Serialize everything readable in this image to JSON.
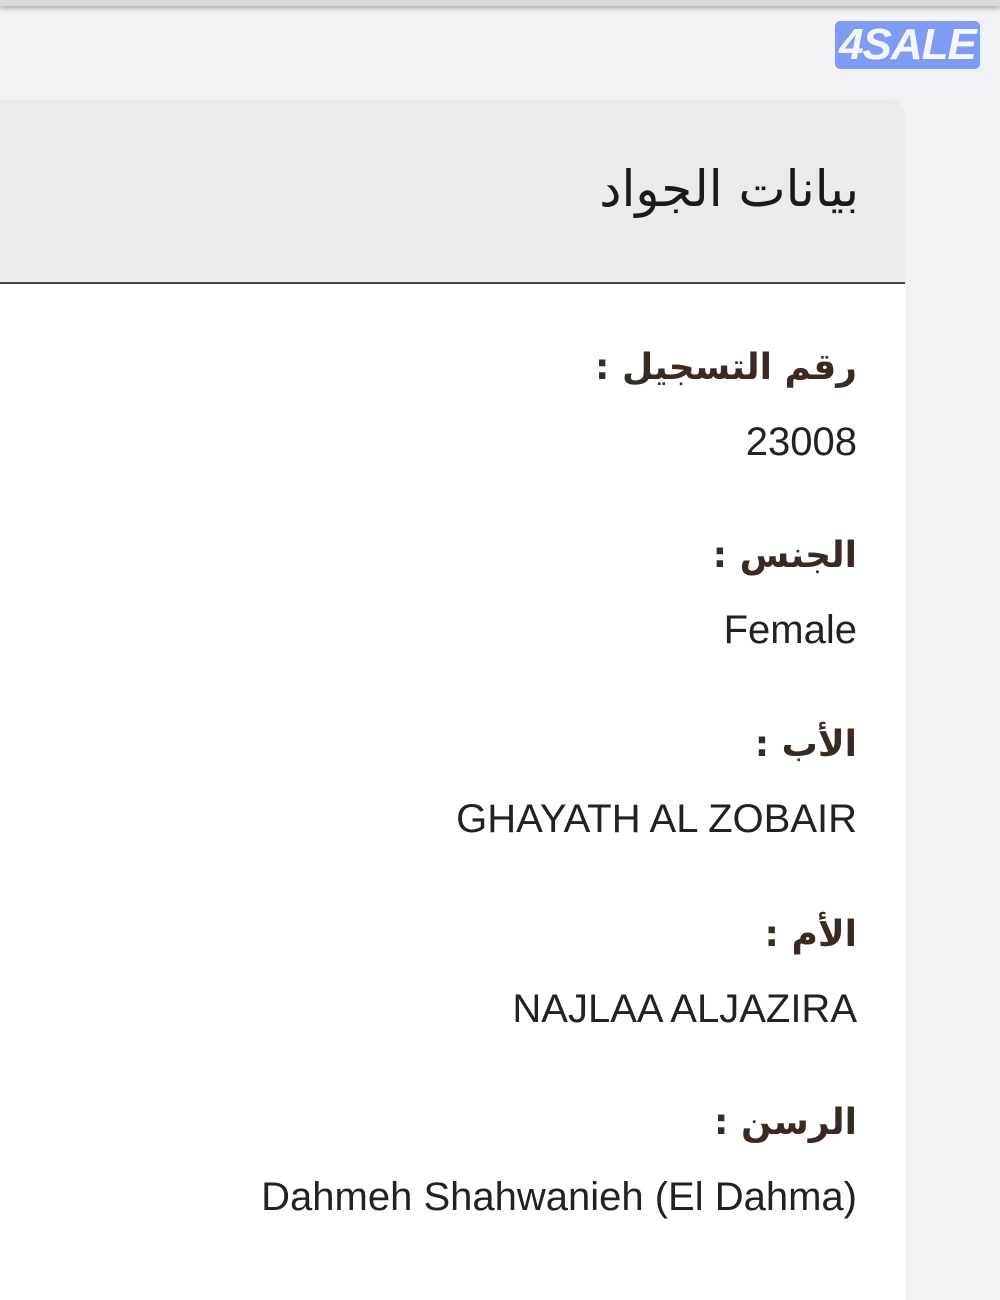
{
  "brand": {
    "logo_text": "4SALE",
    "color": "#7f9cf5"
  },
  "card": {
    "title": "بيانات الجواد",
    "fields": [
      {
        "label": "رقم التسجيل :",
        "value": "23008"
      },
      {
        "label": "الجنس :",
        "value": "Female"
      },
      {
        "label": "الأب :",
        "value": "GHAYATH AL ZOBAIR"
      },
      {
        "label": "الأم :",
        "value": "NAJLAA ALJAZIRA"
      },
      {
        "label": "الرسن :",
        "value": "Dahmeh Shahwanieh (El Dahma)"
      }
    ]
  }
}
